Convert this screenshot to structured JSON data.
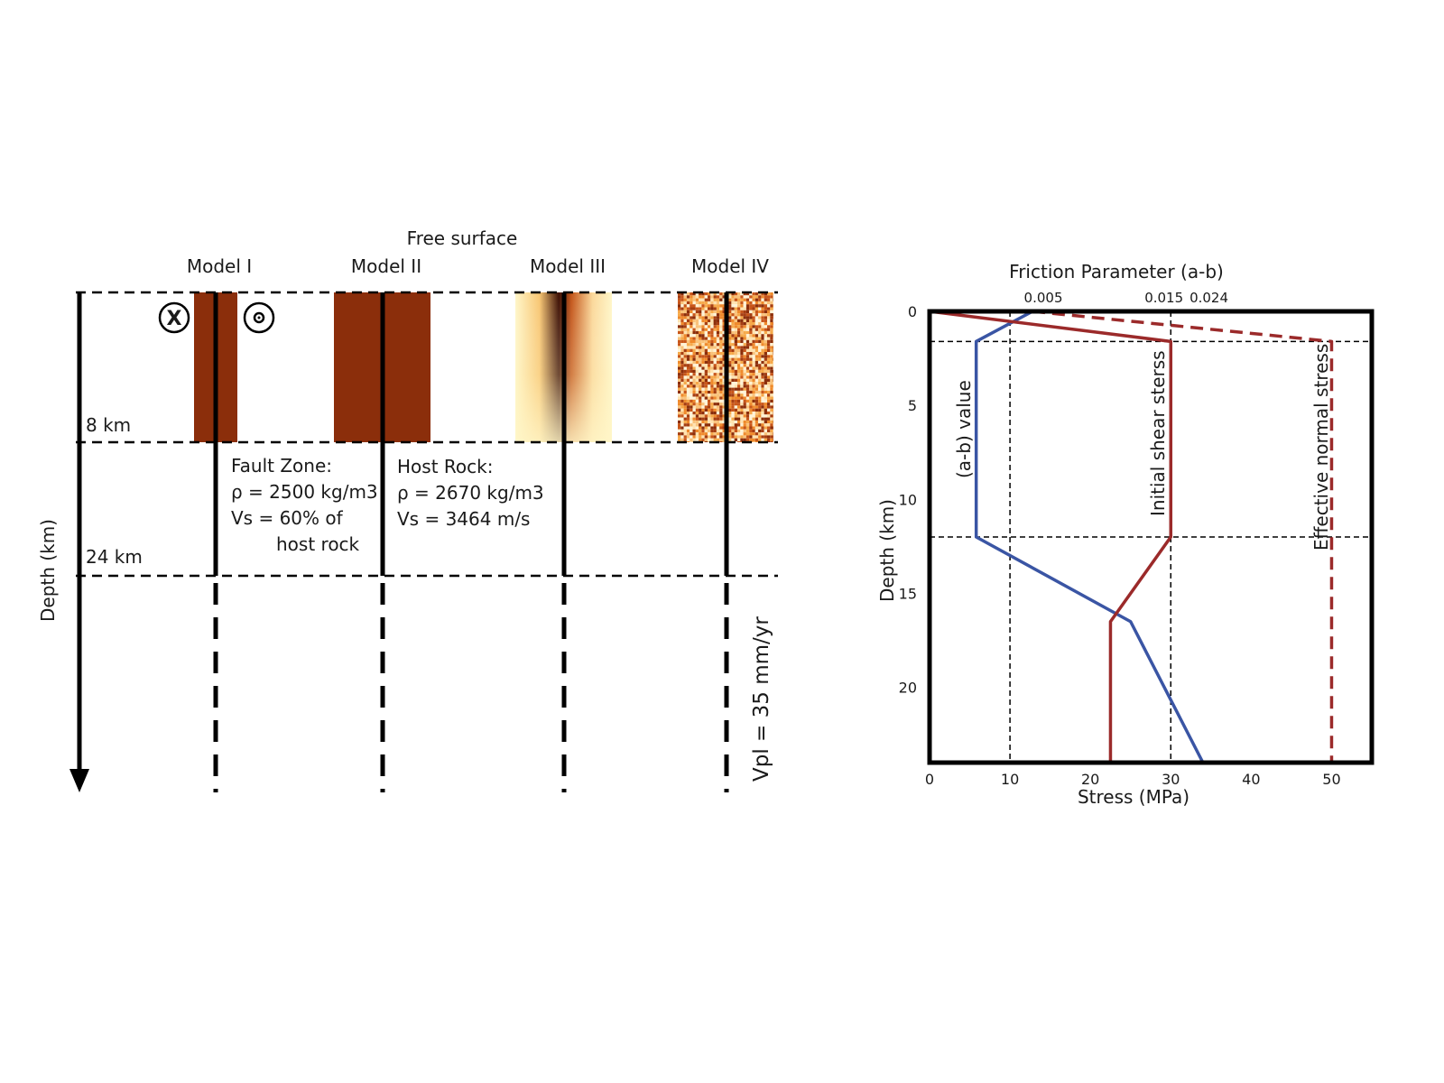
{
  "left_panel": {
    "free_surface": "Free surface",
    "models": [
      "Model I",
      "Model II",
      "Model III",
      "Model IV"
    ],
    "depth_axis_label": "Depth (km)",
    "depth_8": "8 km",
    "depth_24": "24 km",
    "into_page_symbol": "X",
    "fault_zone": {
      "title": "Fault Zone:",
      "rho": "ρ = 2500 kg/m3",
      "vs": "Vs = 60% of",
      "vs2": "host rock"
    },
    "host_rock": {
      "title": "Host Rock:",
      "rho": "ρ = 2670 kg/m3",
      "vs": "Vs = 3464 m/s"
    },
    "vpl": "Vpl = 35 mm/yr",
    "colors": {
      "fault_zone": "#8b2e0b",
      "gradient_core": "#3d1004",
      "gradient_mid": "#e07a1f",
      "gradient_edge": "#fff6c8"
    }
  },
  "chart_data": {
    "type": "line",
    "title": "Friction Parameter (a-b)",
    "xlabel": "Stress (MPa)",
    "ylabel": "Depth (km)",
    "xlim": [
      0,
      55
    ],
    "ylim": [
      24,
      0
    ],
    "xticks": [
      0,
      10,
      20,
      30,
      40,
      50
    ],
    "yticks": [
      0,
      5,
      10,
      15,
      20
    ],
    "top_ticks": [
      {
        "label": "0.005",
        "x": 12.8
      },
      {
        "label": "0.015",
        "x": 27.8
      },
      {
        "label": "0.024",
        "x": 33.4
      }
    ],
    "guides": {
      "x": [
        10,
        30
      ],
      "y": [
        1.6,
        12
      ]
    },
    "series": [
      {
        "name": "(a-b) value",
        "color": "#3a55a4",
        "dash": false,
        "x": [
          12.8,
          5.8,
          5.8,
          25,
          34
        ],
        "y": [
          0,
          1.6,
          12,
          16.5,
          24
        ]
      },
      {
        "name": "Initial shear sterss",
        "color": "#9b2a2a",
        "dash": false,
        "x": [
          0,
          30,
          30,
          22.5,
          22.5
        ],
        "y": [
          0,
          1.6,
          12,
          16.5,
          24
        ]
      },
      {
        "name": "Effective normal stress",
        "color": "#9b2a2a",
        "dash": true,
        "x": [
          12.8,
          50,
          50
        ],
        "y": [
          0,
          1.6,
          24
        ]
      }
    ]
  }
}
